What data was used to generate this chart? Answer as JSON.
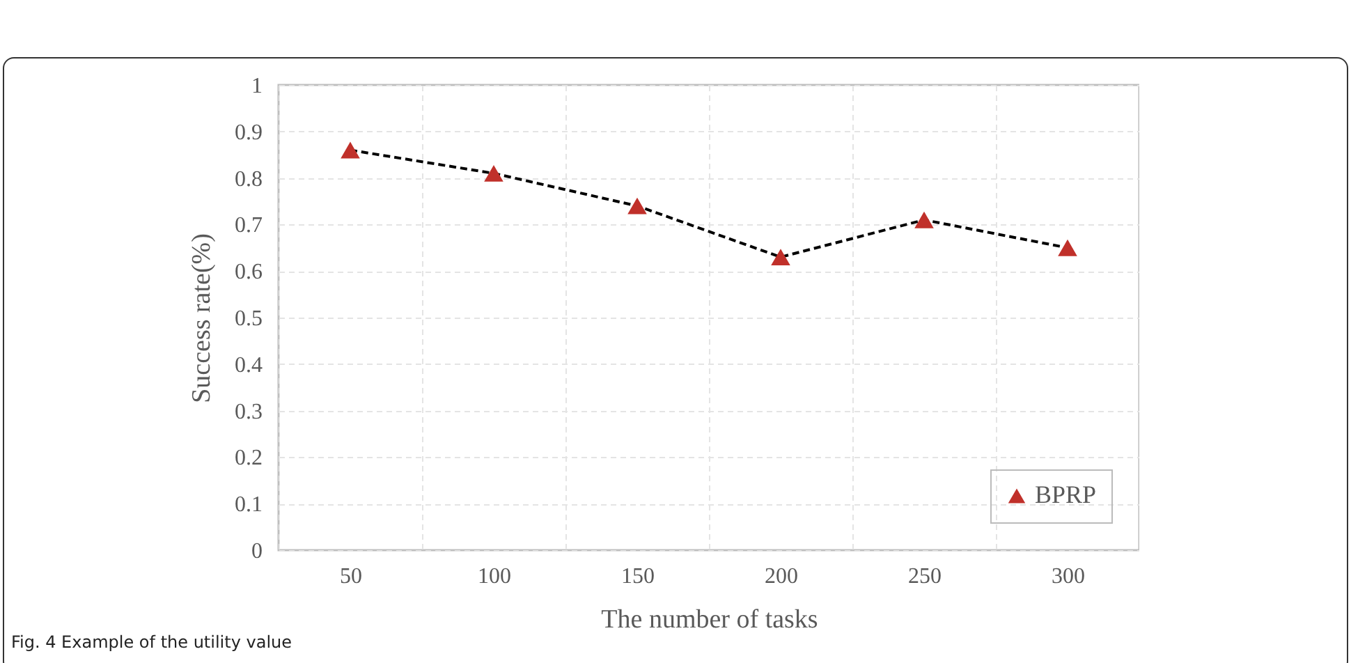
{
  "chart_data": {
    "type": "line",
    "xlabel": "The number of tasks",
    "ylabel": "Success rate(%)",
    "categories": [
      "50",
      "100",
      "150",
      "200",
      "250",
      "300"
    ],
    "series": [
      {
        "name": "BPRP",
        "color": "#c0302a",
        "values": [
          0.86,
          0.81,
          0.74,
          0.63,
          0.71,
          0.65
        ]
      }
    ],
    "ylim": [
      0,
      1
    ],
    "yticks": [
      0,
      0.1,
      0.2,
      0.3,
      0.4,
      0.5,
      0.6,
      0.7,
      0.8,
      0.9,
      1
    ],
    "grid": true,
    "legend": "bottom right",
    "marker": "triangle",
    "line_style": "dashed",
    "annotations": [
      "Fig. 4 Example of the utility value"
    ]
  }
}
